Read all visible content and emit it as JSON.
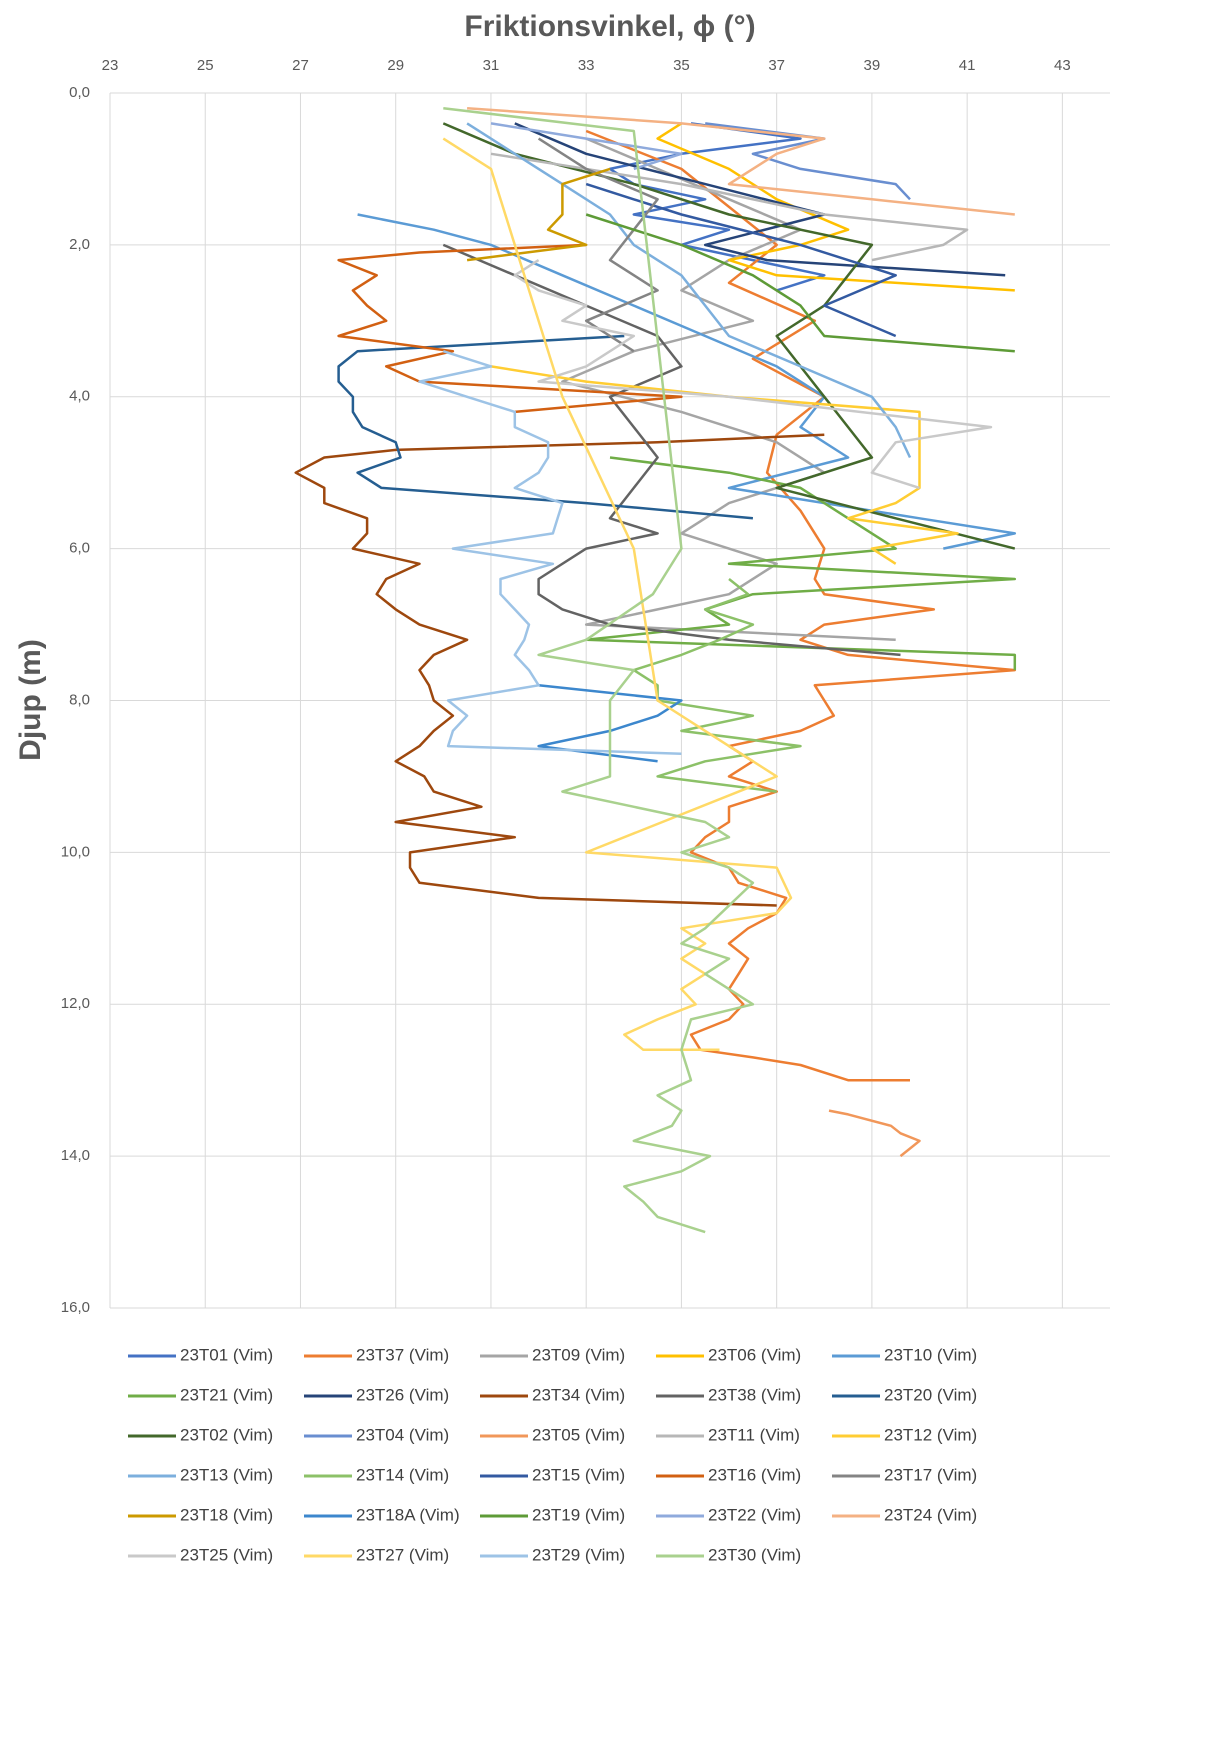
{
  "chart_data": {
    "type": "line",
    "title": "Friktionsvinkel, ϕ  (°)",
    "y_label": "Djup (m)",
    "xlim": [
      23,
      44
    ],
    "xticks": [
      23,
      25,
      27,
      29,
      31,
      33,
      35,
      37,
      39,
      41,
      43
    ],
    "ylim": [
      0,
      16
    ],
    "y_inverted": true,
    "yticks": [
      {
        "value": 0,
        "label": "0,0"
      },
      {
        "value": 2,
        "label": "2,0"
      },
      {
        "value": 4,
        "label": "4,0"
      },
      {
        "value": 6,
        "label": "6,0"
      },
      {
        "value": 8,
        "label": "8,0"
      },
      {
        "value": 10,
        "label": "10,0"
      },
      {
        "value": 12,
        "label": "12,0"
      },
      {
        "value": 14,
        "label": "14,0"
      },
      {
        "value": 16,
        "label": "16,0"
      }
    ],
    "grid": true,
    "legend": "bottom",
    "series": [
      {
        "name": "23T01 (Vim)",
        "color": "#4472C4",
        "x": [
          35.2,
          37.5,
          35.0,
          33.5,
          34.0,
          35.5,
          34.0,
          36.0,
          35.0,
          36.5,
          38.0,
          37.0
        ],
        "y": [
          0.4,
          0.6,
          0.8,
          1.0,
          1.2,
          1.4,
          1.6,
          1.8,
          2.0,
          2.2,
          2.4,
          2.6
        ]
      },
      {
        "name": "23T37 (Vim)",
        "color": "#ED7D31",
        "x": [
          33,
          35,
          36,
          37,
          36,
          37.8,
          36.5,
          38,
          37,
          36.8,
          37.5,
          38,
          37.8,
          38,
          40.3,
          38,
          37.5,
          38.5,
          42,
          37.8,
          38,
          38.2,
          37.5,
          36,
          36.5,
          36,
          37,
          36,
          36,
          35.5,
          35.2,
          36,
          36.2,
          37.2,
          37,
          36.4,
          36,
          36.4,
          36.2,
          36,
          36.3,
          36,
          35.2,
          35.4,
          36.5,
          37.5,
          38.5,
          39.8
        ],
        "y": [
          0.5,
          1.0,
          1.5,
          2.0,
          2.5,
          3.0,
          3.5,
          4.0,
          4.5,
          5.0,
          5.5,
          6.0,
          6.4,
          6.6,
          6.8,
          7.0,
          7.2,
          7.4,
          7.6,
          7.8,
          8.0,
          8.2,
          8.4,
          8.6,
          8.8,
          9.0,
          9.2,
          9.4,
          9.6,
          9.8,
          10.0,
          10.2,
          10.4,
          10.6,
          10.8,
          11.0,
          11.2,
          11.4,
          11.6,
          11.8,
          12.0,
          12.2,
          12.4,
          12.6,
          12.7,
          12.8,
          13.0,
          13.0
        ]
      },
      {
        "name": "23T09 (Vim)",
        "color": "#A5A5A5",
        "x": [
          33,
          34.5,
          36,
          37.5,
          36,
          35,
          36.5,
          34,
          32.5,
          35,
          37,
          38,
          36,
          35,
          37,
          36,
          33,
          39.5
        ],
        "y": [
          0.6,
          1.0,
          1.4,
          1.8,
          2.2,
          2.6,
          3.0,
          3.4,
          3.8,
          4.2,
          4.6,
          5.0,
          5.4,
          5.8,
          6.2,
          6.6,
          7.0,
          7.2
        ]
      },
      {
        "name": "23T06 (Vim)",
        "color": "#FFC000",
        "x": [
          35,
          34.5,
          36,
          37,
          38.5,
          37.5,
          36,
          37,
          42
        ],
        "y": [
          0.4,
          0.6,
          1.0,
          1.4,
          1.8,
          2.0,
          2.2,
          2.4,
          2.6
        ]
      },
      {
        "name": "23T10 (Vim)",
        "color": "#5B9BD5",
        "x": [
          28.2,
          29.8,
          31,
          32.5,
          34,
          35.5,
          37,
          38,
          37.5,
          38.5,
          36,
          40,
          42,
          40.5
        ],
        "y": [
          1.6,
          1.8,
          2.0,
          2.4,
          2.8,
          3.2,
          3.6,
          4.0,
          4.4,
          4.8,
          5.2,
          5.6,
          5.8,
          6.0
        ]
      },
      {
        "name": "23T21 (Vim)",
        "color": "#70AD47",
        "x": [
          33.5,
          36,
          37.5,
          38.5,
          39.5,
          36,
          42,
          36.5,
          35.5,
          36,
          33,
          42,
          42
        ],
        "y": [
          4.8,
          5.0,
          5.2,
          5.6,
          6.0,
          6.2,
          6.4,
          6.6,
          6.8,
          7.0,
          7.2,
          7.4,
          7.6
        ]
      },
      {
        "name": "23T26 (Vim)",
        "color": "#264478",
        "x": [
          31.5,
          33,
          35.5,
          38,
          35.5,
          36.8,
          41.8
        ],
        "y": [
          0.4,
          0.8,
          1.2,
          1.6,
          2.0,
          2.2,
          2.4
        ]
      },
      {
        "name": "23T34 (Vim)",
        "color": "#9E480E",
        "x": [
          38,
          34.5,
          29,
          27.5,
          26.9,
          27.5,
          27.5,
          28.4,
          28.4,
          28.1,
          29.5,
          28.8,
          28.6,
          29,
          29.5,
          30.5,
          29.8,
          29.5,
          29.7,
          29.8,
          30.2,
          29.8,
          29.5,
          29,
          29.6,
          29.8,
          30.8,
          29,
          31.5,
          29.3,
          29.3,
          29.5,
          32,
          37
        ],
        "y": [
          4.5,
          4.6,
          4.7,
          4.8,
          5.0,
          5.2,
          5.4,
          5.6,
          5.8,
          6.0,
          6.2,
          6.4,
          6.6,
          6.8,
          7.0,
          7.2,
          7.4,
          7.6,
          7.8,
          8.0,
          8.2,
          8.4,
          8.6,
          8.8,
          9.0,
          9.2,
          9.4,
          9.6,
          9.8,
          10.0,
          10.2,
          10.4,
          10.6,
          10.7
        ]
      },
      {
        "name": "23T38 (Vim)",
        "color": "#636363",
        "x": [
          30,
          31.5,
          33,
          34.5,
          35,
          33.5,
          34,
          34.5,
          34,
          33.5,
          34.5,
          33,
          32,
          32,
          32.5,
          33.5,
          36,
          39.6
        ],
        "y": [
          2.0,
          2.4,
          2.8,
          3.2,
          3.6,
          4.0,
          4.4,
          4.8,
          5.2,
          5.6,
          5.8,
          6.0,
          6.4,
          6.6,
          6.8,
          7.0,
          7.2,
          7.4
        ]
      },
      {
        "name": "23T20 (Vim)",
        "color": "#255E91",
        "x": [
          33.8,
          28.2,
          27.8,
          27.8,
          28.1,
          28.1,
          28.3,
          29,
          29.1,
          28.2,
          28.7,
          33,
          36.5
        ],
        "y": [
          3.2,
          3.4,
          3.6,
          3.8,
          4.0,
          4.2,
          4.4,
          4.6,
          4.8,
          5.0,
          5.2,
          5.4,
          5.6
        ]
      },
      {
        "name": "23T02 (Vim)",
        "color": "#43682B",
        "x": [
          30,
          31.5,
          34,
          36,
          39,
          38.5,
          38,
          37,
          37.5,
          38,
          38.5,
          39,
          37,
          39.5,
          42
        ],
        "y": [
          0.4,
          0.8,
          1.2,
          1.6,
          2.0,
          2.4,
          2.8,
          3.2,
          3.6,
          4.0,
          4.4,
          4.8,
          5.2,
          5.6,
          6.0
        ]
      },
      {
        "name": "23T04 (Vim)",
        "color": "#698ED0",
        "x": [
          35.5,
          38,
          36.5,
          37.5,
          39.5,
          39.8
        ],
        "y": [
          0.4,
          0.6,
          0.8,
          1.0,
          1.2,
          1.4
        ]
      },
      {
        "name": "23T05 (Vim)",
        "color": "#F1975A",
        "x": [
          38.1,
          38.5,
          39.4,
          39.6,
          40,
          39.6
        ],
        "y": [
          13.4,
          13.45,
          13.6,
          13.7,
          13.8,
          14.0
        ]
      },
      {
        "name": "23T11 (Vim)",
        "color": "#B7B7B7",
        "x": [
          31,
          35,
          38,
          41,
          40.5,
          39
        ],
        "y": [
          0.8,
          1.2,
          1.6,
          1.8,
          2.0,
          2.2
        ]
      },
      {
        "name": "23T12 (Vim)",
        "color": "#FFCD33",
        "x": [
          31,
          33,
          36,
          40,
          40,
          39.5,
          38.5,
          40.8,
          39,
          39.5
        ],
        "y": [
          3.6,
          3.8,
          4.0,
          4.2,
          5.2,
          5.4,
          5.6,
          5.8,
          6.0,
          6.2
        ]
      },
      {
        "name": "23T13 (Vim)",
        "color": "#7CAFDD",
        "x": [
          30.5,
          31.5,
          32.5,
          33.5,
          34,
          35,
          35.5,
          36,
          37.5,
          39,
          39.5,
          39.8
        ],
        "y": [
          0.4,
          0.8,
          1.2,
          1.6,
          2.0,
          2.4,
          2.8,
          3.2,
          3.6,
          4.0,
          4.4,
          4.8
        ]
      },
      {
        "name": "23T14 (Vim)",
        "color": "#8CC168",
        "x": [
          36,
          36.4,
          35.5,
          36.5,
          35.8,
          35,
          34,
          34.5,
          34.5,
          36.5,
          35,
          37.5,
          35.5,
          34.5,
          37
        ],
        "y": [
          6.4,
          6.6,
          6.8,
          7.0,
          7.2,
          7.4,
          7.6,
          7.8,
          8.0,
          8.2,
          8.4,
          8.6,
          8.8,
          9.0,
          9.2
        ]
      },
      {
        "name": "23T15 (Vim)",
        "color": "#335AA1",
        "x": [
          33,
          35,
          37.5,
          39.5,
          38,
          39.5
        ],
        "y": [
          1.2,
          1.6,
          2.0,
          2.4,
          2.8,
          3.2
        ]
      },
      {
        "name": "23T16 (Vim)",
        "color": "#D26012",
        "x": [
          33,
          29.5,
          27.8,
          28.6,
          28.1,
          28.4,
          28.8,
          27.8,
          30.2,
          28.8,
          29.5,
          35,
          31.5
        ],
        "y": [
          2.0,
          2.1,
          2.2,
          2.4,
          2.6,
          2.8,
          3.0,
          3.2,
          3.4,
          3.6,
          3.8,
          4.0,
          4.2
        ]
      },
      {
        "name": "23T17 (Vim)",
        "color": "#848484",
        "x": [
          32,
          33,
          34.5,
          34,
          33.5,
          34.5,
          33,
          34
        ],
        "y": [
          0.6,
          1.0,
          1.4,
          1.8,
          2.2,
          2.6,
          3.0,
          3.4
        ]
      },
      {
        "name": "23T18 (Vim)",
        "color": "#CC9A00",
        "x": [
          33.5,
          32.5,
          32.5,
          32.5,
          32.2,
          33,
          30.5
        ],
        "y": [
          1.0,
          1.2,
          1.4,
          1.6,
          1.8,
          2.0,
          2.2
        ]
      },
      {
        "name": "23T18A (Vim)",
        "color": "#3C87CD",
        "x": [
          32,
          35,
          34.5,
          33.5,
          32,
          34.5
        ],
        "y": [
          7.8,
          8.0,
          8.2,
          8.4,
          8.6,
          8.8
        ]
      },
      {
        "name": "23T19 (Vim)",
        "color": "#5E9B37",
        "x": [
          33,
          35,
          36.5,
          37.5,
          38,
          42
        ],
        "y": [
          1.6,
          2.0,
          2.4,
          2.8,
          3.2,
          3.4
        ]
      },
      {
        "name": "23T22 (Vim)",
        "color": "#8FAADC",
        "x": [
          31,
          33,
          35,
          34
        ],
        "y": [
          0.4,
          0.6,
          0.8,
          1.0
        ]
      },
      {
        "name": "23T24 (Vim)",
        "color": "#F4B183",
        "x": [
          30.5,
          35,
          38,
          37,
          36,
          39,
          42
        ],
        "y": [
          0.2,
          0.4,
          0.6,
          0.8,
          1.2,
          1.4,
          1.6
        ]
      },
      {
        "name": "23T25 (Vim)",
        "color": "#C9C9C9",
        "x": [
          32,
          31.5,
          32,
          33,
          32.5,
          34,
          33,
          32,
          36,
          41.5,
          39.5,
          39,
          40
        ],
        "y": [
          2.2,
          2.4,
          2.6,
          2.8,
          3.0,
          3.2,
          3.6,
          3.8,
          4.0,
          4.4,
          4.6,
          5.0,
          5.2
        ]
      },
      {
        "name": "23T27 (Vim)",
        "color": "#FFD966",
        "x": [
          30,
          31,
          32.5,
          34,
          34.5,
          35.5,
          37,
          33,
          37,
          37.3,
          37,
          35,
          35.5,
          35,
          35.5,
          35,
          35.3,
          34.5,
          33.8,
          34.2,
          35.8
        ],
        "y": [
          0.6,
          1.0,
          4.0,
          6.0,
          8.0,
          8.4,
          9.0,
          10.0,
          10.2,
          10.6,
          10.8,
          11.0,
          11.2,
          11.4,
          11.6,
          11.8,
          12.0,
          12.2,
          12.4,
          12.6,
          12.6
        ]
      },
      {
        "name": "23T29 (Vim)",
        "color": "#9DC3E6",
        "x": [
          30,
          31,
          29.5,
          30.5,
          31.5,
          31.5,
          32.2,
          32.2,
          32,
          31.5,
          32.5,
          32.4,
          32.3,
          30.2,
          32.3,
          31.2,
          31.2,
          31.5,
          31.8,
          31.7,
          31.5,
          31.8,
          32,
          30.1,
          30.5,
          30.2,
          30.1,
          35
        ],
        "y": [
          3.4,
          3.6,
          3.8,
          4.0,
          4.2,
          4.4,
          4.6,
          4.8,
          5.0,
          5.2,
          5.4,
          5.6,
          5.8,
          6.0,
          6.2,
          6.4,
          6.6,
          6.8,
          7.0,
          7.2,
          7.4,
          7.6,
          7.8,
          8.0,
          8.2,
          8.4,
          8.6,
          8.7
        ]
      },
      {
        "name": "23T30 (Vim)",
        "color": "#A9D18E",
        "x": [
          30,
          34,
          35,
          34.4,
          33,
          32,
          34,
          33.5,
          33.5,
          32.5,
          35.5,
          36,
          35,
          36,
          36.5,
          35.5,
          35,
          36,
          35.5,
          36.5,
          35.2,
          35,
          35.2,
          34.5,
          35,
          34.8,
          34,
          35.6,
          35,
          33.8,
          34.2,
          34.5,
          35.5
        ],
        "y": [
          0.2,
          0.5,
          6.0,
          6.6,
          7.2,
          7.4,
          7.6,
          8.0,
          9.0,
          9.2,
          9.6,
          9.8,
          10.0,
          10.2,
          10.4,
          11.0,
          11.2,
          11.4,
          11.6,
          12.0,
          12.2,
          12.6,
          13.0,
          13.2,
          13.4,
          13.6,
          13.8,
          14.0,
          14.2,
          14.4,
          14.6,
          14.8,
          15.0
        ]
      }
    ]
  }
}
